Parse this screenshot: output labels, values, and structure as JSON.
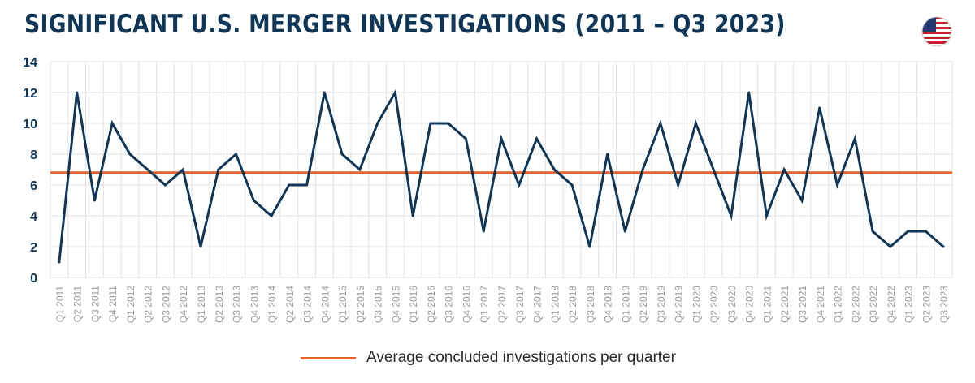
{
  "title": "SIGNIFICANT U.S. MERGER INVESTIGATIONS (2011 – Q3 2023)",
  "flag_icon": "us-flag-icon",
  "colors": {
    "title": "#0f3557",
    "series": "#0f3557",
    "average": "#e8622e",
    "grid": "#e3e3e3",
    "tick": "#999999",
    "ytick": "#0f3557"
  },
  "legend": {
    "average_label": "Average concluded investigations per quarter"
  },
  "chart_data": {
    "type": "line",
    "title": "SIGNIFICANT U.S. MERGER INVESTIGATIONS (2011 – Q3 2023)",
    "xlabel": "",
    "ylabel": "",
    "ylim": [
      0,
      14
    ],
    "yticks": [
      0,
      2,
      4,
      6,
      8,
      10,
      12,
      14
    ],
    "grid": true,
    "legend_placement": "bottom-center",
    "categories": [
      "Q1 2011",
      "Q2 2011",
      "Q3 2011",
      "Q4 2011",
      "Q1 2012",
      "Q2 2012",
      "Q3 2012",
      "Q4 2012",
      "Q1 2013",
      "Q2 2013",
      "Q3 2013",
      "Q4 2013",
      "Q1 2014",
      "Q2 2014",
      "Q3 2014",
      "Q4 2014",
      "Q1 2015",
      "Q2 2015",
      "Q3 2015",
      "Q4 2015",
      "Q1 2016",
      "Q2 2016",
      "Q3 2016",
      "Q4 2016",
      "Q1 2017",
      "Q2 2017",
      "Q3 2017",
      "Q4 2017",
      "Q1 2018",
      "Q2 2018",
      "Q3 2018",
      "Q4 2018",
      "Q1 2019",
      "Q2 2019",
      "Q3 2019",
      "Q4 2019",
      "Q1 2020",
      "Q2 2020",
      "Q3 2020",
      "Q4 2020",
      "Q1 2021",
      "Q2 2021",
      "Q3 2021",
      "Q4 2021",
      "Q1 2022",
      "Q2 2022",
      "Q3 2022",
      "Q4 2022",
      "Q1 2023",
      "Q2 2023",
      "Q3 2023"
    ],
    "series": [
      {
        "values": [
          1,
          12,
          5,
          10,
          8,
          7,
          6,
          7,
          2,
          7,
          8,
          5,
          4,
          6,
          6,
          12,
          8,
          7,
          10,
          12,
          4,
          10,
          10,
          9,
          3,
          9,
          6,
          9,
          7,
          6,
          2,
          8,
          3,
          7,
          10,
          6,
          10,
          7,
          4,
          12,
          4,
          7,
          5,
          11,
          6,
          9,
          3,
          2,
          3,
          3,
          2
        ]
      }
    ],
    "reference_lines": [
      {
        "name": "Average concluded investigations per quarter",
        "value": 6.8
      }
    ]
  }
}
